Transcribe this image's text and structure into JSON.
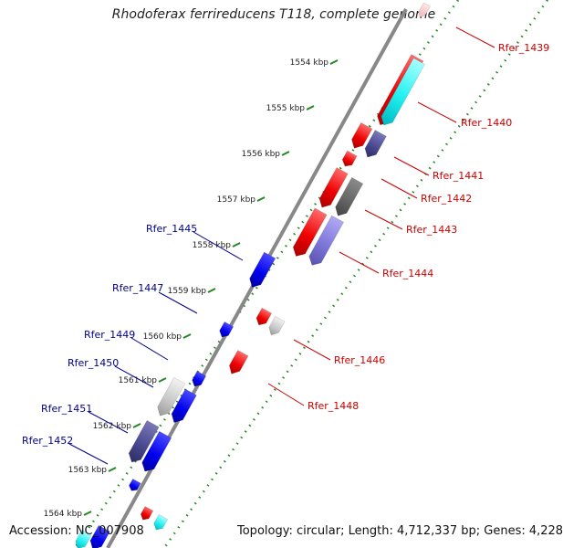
{
  "title": "Rhodoferax ferrireducens T118, complete genome",
  "footer": {
    "accession": "Accession: NC_007908",
    "topology": "Topology: circular; Length: 4,712,337 bp; Genes: 4,228"
  },
  "colors": {
    "forward_gene": "#ff0000",
    "reverse_gene": "#0000ff",
    "backbone": "#888888",
    "tick": "#228822",
    "label_forward": "#cc0000",
    "label_reverse": "#00008b"
  },
  "scale": {
    "unit": "kbp",
    "ticks": [
      "1554 kbp",
      "1555 kbp",
      "1556 kbp",
      "1557 kbp",
      "1558 kbp",
      "1559 kbp",
      "1560 kbp",
      "1561 kbp",
      "1562 kbp",
      "1563 kbp",
      "1564 kbp"
    ]
  },
  "genes": [
    {
      "id": "Rfer_1439",
      "label": "Rfer_1439",
      "strand": "forward"
    },
    {
      "id": "Rfer_1440",
      "label": "Rfer_1440",
      "strand": "forward"
    },
    {
      "id": "Rfer_1441",
      "label": "Rfer_1441",
      "strand": "forward"
    },
    {
      "id": "Rfer_1442",
      "label": "Rfer_1442",
      "strand": "forward"
    },
    {
      "id": "Rfer_1443",
      "label": "Rfer_1443",
      "strand": "forward"
    },
    {
      "id": "Rfer_1444",
      "label": "Rfer_1444",
      "strand": "forward"
    },
    {
      "id": "Rfer_1445",
      "label": "Rfer_1445",
      "strand": "reverse"
    },
    {
      "id": "Rfer_1446",
      "label": "Rfer_1446",
      "strand": "forward"
    },
    {
      "id": "Rfer_1447",
      "label": "Rfer_1447",
      "strand": "reverse"
    },
    {
      "id": "Rfer_1448",
      "label": "Rfer_1448",
      "strand": "forward"
    },
    {
      "id": "Rfer_1449",
      "label": "Rfer_1449",
      "strand": "reverse"
    },
    {
      "id": "Rfer_1450",
      "label": "Rfer_1450",
      "strand": "reverse"
    },
    {
      "id": "Rfer_1451",
      "label": "Rfer_1451",
      "strand": "reverse"
    },
    {
      "id": "Rfer_1452",
      "label": "Rfer_1452",
      "strand": "reverse"
    }
  ]
}
